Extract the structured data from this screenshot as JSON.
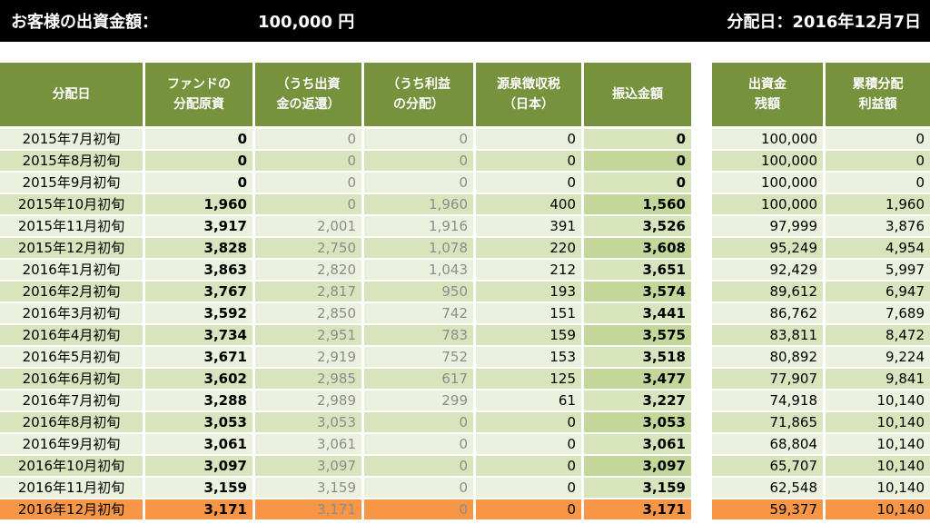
{
  "header": {
    "investment_label": "お客様の出資金額：",
    "investment_value": "100,000 円",
    "distribution_date": "分配日：2016年12月7日"
  },
  "table": {
    "columns": [
      {
        "key": "date",
        "label": "分配日"
      },
      {
        "key": "fund",
        "label": "ファンドの\n分配原資"
      },
      {
        "key": "return",
        "label": "（うち出資\n金の返還）"
      },
      {
        "key": "profit",
        "label": "（うち利益\nの分配）"
      },
      {
        "key": "tax",
        "label": "源泉徴収税\n（日本）"
      },
      {
        "key": "transfer",
        "label": "振込金額"
      },
      {
        "key": "balance",
        "label": "出資金\n残額"
      },
      {
        "key": "cumulative",
        "label": "累積分配\n利益額"
      }
    ],
    "rows": [
      {
        "date": "2015年7月初旬",
        "fund": "0",
        "return": "0",
        "profit": "0",
        "tax": "0",
        "transfer": "0",
        "balance": "100,000",
        "cumulative": "0"
      },
      {
        "date": "2015年8月初旬",
        "fund": "0",
        "return": "0",
        "profit": "0",
        "tax": "0",
        "transfer": "0",
        "balance": "100,000",
        "cumulative": "0"
      },
      {
        "date": "2015年9月初旬",
        "fund": "0",
        "return": "0",
        "profit": "0",
        "tax": "0",
        "transfer": "0",
        "balance": "100,000",
        "cumulative": "0"
      },
      {
        "date": "2015年10月初旬",
        "fund": "1,960",
        "return": "0",
        "profit": "1,960",
        "tax": "400",
        "transfer": "1,560",
        "balance": "100,000",
        "cumulative": "1,960"
      },
      {
        "date": "2015年11月初旬",
        "fund": "3,917",
        "return": "2,001",
        "profit": "1,916",
        "tax": "391",
        "transfer": "3,526",
        "balance": "97,999",
        "cumulative": "3,876"
      },
      {
        "date": "2015年12月初旬",
        "fund": "3,828",
        "return": "2,750",
        "profit": "1,078",
        "tax": "220",
        "transfer": "3,608",
        "balance": "95,249",
        "cumulative": "4,954"
      },
      {
        "date": "2016年1月初旬",
        "fund": "3,863",
        "return": "2,820",
        "profit": "1,043",
        "tax": "212",
        "transfer": "3,651",
        "balance": "92,429",
        "cumulative": "5,997"
      },
      {
        "date": "2016年2月初旬",
        "fund": "3,767",
        "return": "2,817",
        "profit": "950",
        "tax": "193",
        "transfer": "3,574",
        "balance": "89,612",
        "cumulative": "6,947"
      },
      {
        "date": "2016年3月初旬",
        "fund": "3,592",
        "return": "2,850",
        "profit": "742",
        "tax": "151",
        "transfer": "3,441",
        "balance": "86,762",
        "cumulative": "7,689"
      },
      {
        "date": "2016年4月初旬",
        "fund": "3,734",
        "return": "2,951",
        "profit": "783",
        "tax": "159",
        "transfer": "3,575",
        "balance": "83,811",
        "cumulative": "8,472"
      },
      {
        "date": "2016年5月初旬",
        "fund": "3,671",
        "return": "2,919",
        "profit": "752",
        "tax": "153",
        "transfer": "3,518",
        "balance": "80,892",
        "cumulative": "9,224"
      },
      {
        "date": "2016年6月初旬",
        "fund": "3,602",
        "return": "2,985",
        "profit": "617",
        "tax": "125",
        "transfer": "3,477",
        "balance": "77,907",
        "cumulative": "9,841"
      },
      {
        "date": "2016年7月初旬",
        "fund": "3,288",
        "return": "2,989",
        "profit": "299",
        "tax": "61",
        "transfer": "3,227",
        "balance": "74,918",
        "cumulative": "10,140"
      },
      {
        "date": "2016年8月初旬",
        "fund": "3,053",
        "return": "3,053",
        "profit": "0",
        "tax": "0",
        "transfer": "3,053",
        "balance": "71,865",
        "cumulative": "10,140"
      },
      {
        "date": "2016年9月初旬",
        "fund": "3,061",
        "return": "3,061",
        "profit": "0",
        "tax": "0",
        "transfer": "3,061",
        "balance": "68,804",
        "cumulative": "10,140"
      },
      {
        "date": "2016年10月初旬",
        "fund": "3,097",
        "return": "3,097",
        "profit": "0",
        "tax": "0",
        "transfer": "3,097",
        "balance": "65,707",
        "cumulative": "10,140"
      },
      {
        "date": "2016年11月初旬",
        "fund": "3,159",
        "return": "3,159",
        "profit": "0",
        "tax": "0",
        "transfer": "3,159",
        "balance": "62,548",
        "cumulative": "10,140"
      },
      {
        "date": "2016年12月初旬",
        "fund": "3,171",
        "return": "3,171",
        "profit": "0",
        "tax": "0",
        "transfer": "3,171",
        "balance": "59,377",
        "cumulative": "10,140",
        "highlight": true
      }
    ]
  },
  "colors": {
    "header_bg": "#76923c",
    "row_light": "#ebf1de",
    "row_dark": "#d8e4bc",
    "transfer_light": "#d8e4bc",
    "transfer_dark": "#c4d79b",
    "highlight": "#f79646"
  }
}
